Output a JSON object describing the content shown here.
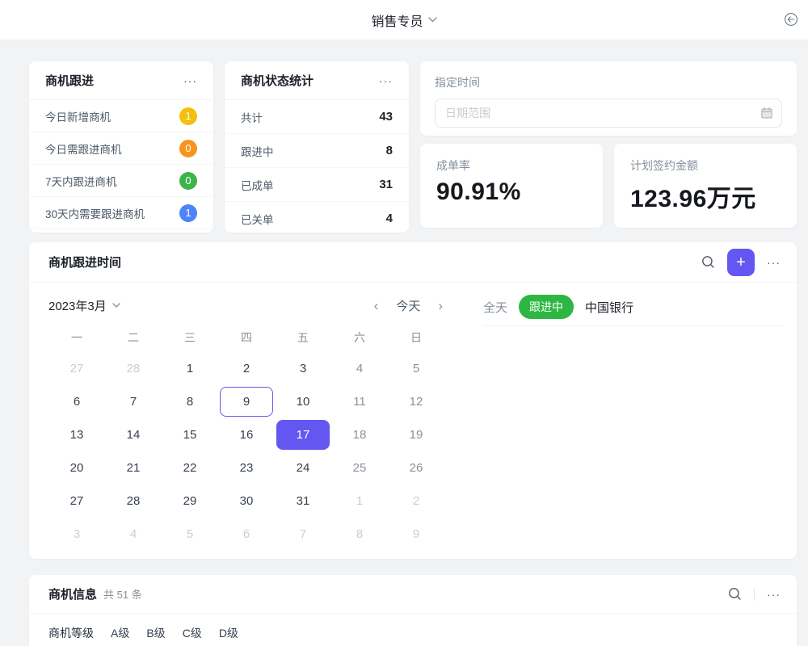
{
  "colors": {
    "accent": "#6456f0",
    "green_pill": "#2db742",
    "badge_yellow": "#f2c10e",
    "badge_orange": "#f7941e",
    "badge_green": "#3cb44a",
    "badge_blue": "#4e83fd"
  },
  "header": {
    "title": "销售专员"
  },
  "followup_card": {
    "title": "商机跟进",
    "more_label": "···",
    "items": [
      {
        "label": "今日新增商机",
        "value": "1",
        "color": "#f2c10e"
      },
      {
        "label": "今日需跟进商机",
        "value": "0",
        "color": "#f7941e"
      },
      {
        "label": "7天内跟进商机",
        "value": "0",
        "color": "#3cb44a"
      },
      {
        "label": "30天内需要跟进商机",
        "value": "1",
        "color": "#4e83fd"
      }
    ]
  },
  "status_card": {
    "title": "商机状态统计",
    "more_label": "···",
    "rows": [
      {
        "label": "共计",
        "value": "43"
      },
      {
        "label": "跟进中",
        "value": "8"
      },
      {
        "label": "已成单",
        "value": "31"
      },
      {
        "label": "已关单",
        "value": "4"
      }
    ]
  },
  "time_filter": {
    "label": "指定时间",
    "placeholder": "日期范围"
  },
  "stats": [
    {
      "label": "成单率",
      "value": "90.91%"
    },
    {
      "label": "计划签约金额",
      "value": "123.96万元"
    }
  ],
  "calendar_card": {
    "title": "商机跟进时间",
    "more_label": "···",
    "add_label": "+",
    "month": "2023年3月",
    "prev": "‹",
    "next": "›",
    "today_label": "今天",
    "week_days": [
      "一",
      "二",
      "三",
      "四",
      "五",
      "六",
      "日"
    ],
    "weeks": [
      [
        {
          "d": "27",
          "t": "out"
        },
        {
          "d": "28",
          "t": "out"
        },
        {
          "d": "1",
          "t": "cur"
        },
        {
          "d": "2",
          "t": "cur"
        },
        {
          "d": "3",
          "t": "cur"
        },
        {
          "d": "4",
          "t": "wk"
        },
        {
          "d": "5",
          "t": "wk"
        }
      ],
      [
        {
          "d": "6",
          "t": "cur"
        },
        {
          "d": "7",
          "t": "cur"
        },
        {
          "d": "8",
          "t": "cur"
        },
        {
          "d": "9",
          "t": "today"
        },
        {
          "d": "10",
          "t": "cur"
        },
        {
          "d": "11",
          "t": "wk"
        },
        {
          "d": "12",
          "t": "wk"
        }
      ],
      [
        {
          "d": "13",
          "t": "cur"
        },
        {
          "d": "14",
          "t": "cur"
        },
        {
          "d": "15",
          "t": "cur"
        },
        {
          "d": "16",
          "t": "cur"
        },
        {
          "d": "17",
          "t": "sel"
        },
        {
          "d": "18",
          "t": "wk"
        },
        {
          "d": "19",
          "t": "wk"
        }
      ],
      [
        {
          "d": "20",
          "t": "cur"
        },
        {
          "d": "21",
          "t": "cur"
        },
        {
          "d": "22",
          "t": "cur"
        },
        {
          "d": "23",
          "t": "cur"
        },
        {
          "d": "24",
          "t": "cur"
        },
        {
          "d": "25",
          "t": "wk"
        },
        {
          "d": "26",
          "t": "wk"
        }
      ],
      [
        {
          "d": "27",
          "t": "cur"
        },
        {
          "d": "28",
          "t": "cur"
        },
        {
          "d": "29",
          "t": "cur"
        },
        {
          "d": "30",
          "t": "cur"
        },
        {
          "d": "31",
          "t": "cur"
        },
        {
          "d": "1",
          "t": "out"
        },
        {
          "d": "2",
          "t": "out"
        }
      ],
      [
        {
          "d": "3",
          "t": "out"
        },
        {
          "d": "4",
          "t": "out"
        },
        {
          "d": "5",
          "t": "out"
        },
        {
          "d": "6",
          "t": "out"
        },
        {
          "d": "7",
          "t": "out"
        },
        {
          "d": "8",
          "t": "out"
        },
        {
          "d": "9",
          "t": "out"
        }
      ]
    ],
    "event": {
      "time": "全天",
      "status": "跟进中",
      "title": "中国银行"
    }
  },
  "info_card": {
    "title": "商机信息",
    "count": "共 51 条",
    "more_label": "···",
    "filter_label": "商机等级",
    "options": [
      "A级",
      "B级",
      "C级",
      "D级"
    ]
  }
}
